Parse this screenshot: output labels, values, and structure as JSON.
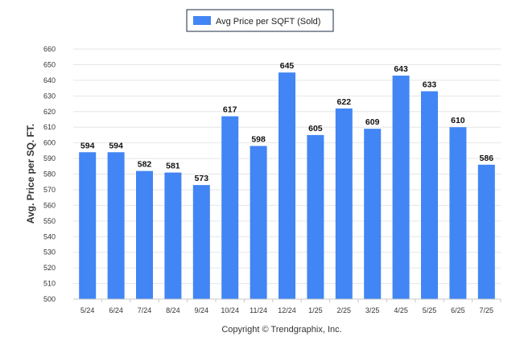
{
  "chart_data": {
    "type": "bar",
    "title": "",
    "xlabel": "",
    "ylabel": "Avg. Price per SQ. FT.",
    "categories": [
      "5/24",
      "6/24",
      "7/24",
      "8/24",
      "9/24",
      "10/24",
      "11/24",
      "12/24",
      "1/25",
      "2/25",
      "3/25",
      "4/25",
      "5/25",
      "6/25",
      "7/25"
    ],
    "series": [
      {
        "name": "Avg Price per SQFT (Sold)",
        "color": "#4285f4",
        "values": [
          594,
          594,
          582,
          581,
          573,
          617,
          598,
          645,
          605,
          622,
          609,
          643,
          633,
          610,
          586
        ]
      }
    ],
    "ylim": [
      500,
      660
    ],
    "yticks": [
      500,
      510,
      520,
      530,
      540,
      550,
      560,
      570,
      580,
      590,
      600,
      610,
      620,
      630,
      640,
      650,
      660
    ],
    "grid": true,
    "legend_position": "top-center",
    "data_labels": true
  },
  "footer": {
    "copyright": "Copyright © Trendgraphix, Inc."
  }
}
